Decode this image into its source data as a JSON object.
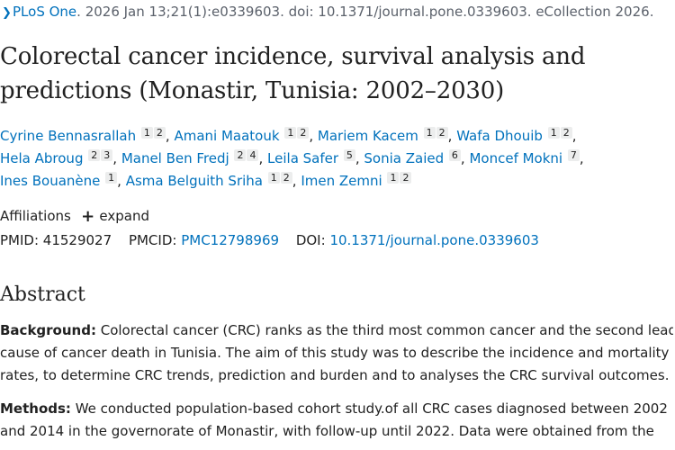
{
  "citation": {
    "journal": "PLoS One",
    "details": ". 2026 Jan 13;21(1):e0339603. doi: 10.1371/journal.pone.0339603. eCollection 2026."
  },
  "article": {
    "title_lines": [
      "Colorectal cancer incidence, survival analysis and",
      "predictions (Monastir, Tunisia: 2002–2030)"
    ]
  },
  "authors": [
    {
      "name": "Cyrine Bennasrallah",
      "affs": [
        "1",
        "2"
      ]
    },
    {
      "name": "Amani Maatouk",
      "affs": [
        "1",
        "2"
      ]
    },
    {
      "name": "Mariem Kacem",
      "affs": [
        "1",
        "2"
      ]
    },
    {
      "name": "Wafa Dhouib",
      "affs": [
        "1",
        "2"
      ]
    },
    {
      "name": "Hela Abroug",
      "affs": [
        "2",
        "3"
      ]
    },
    {
      "name": "Manel Ben Fredj",
      "affs": [
        "2",
        "4"
      ]
    },
    {
      "name": "Leila Safer",
      "affs": [
        "5"
      ]
    },
    {
      "name": "Sonia Zaied",
      "affs": [
        "6"
      ]
    },
    {
      "name": "Moncef Mokni",
      "affs": [
        "7"
      ]
    },
    {
      "name": "Ines Bouanène",
      "affs": [
        "1"
      ]
    },
    {
      "name": "Asma Belguith Sriha",
      "affs": [
        "1",
        "2"
      ]
    },
    {
      "name": "Imen Zemni",
      "affs": [
        "1",
        "2"
      ]
    }
  ],
  "affiliations": {
    "label": "Affiliations",
    "expand_label": "expand"
  },
  "identifiers": {
    "pmid_label": "PMID:",
    "pmid": "41529027",
    "pmcid_label": "PMCID:",
    "pmcid": "PMC12798969",
    "doi_label": "DOI:",
    "doi": "10.1371/journal.pone.0339603"
  },
  "abstract": {
    "heading": "Abstract",
    "background": {
      "label": "Background:",
      "lines": [
        " Colorectal cancer (CRC) ranks as the third most common cancer and the second leading",
        "cause of cancer death in Tunisia. The aim of this study was to describe the incidence and mortality",
        "rates, to determine CRC trends, prediction and burden and to analyses the CRC survival outcomes."
      ]
    },
    "methods": {
      "label": "Methods:",
      "lines": [
        " We conducted population-based cohort study.of all CRC cases diagnosed between 2002",
        "and 2014 in the governorate of Monastir, with follow-up until 2022. Data were obtained from the"
      ]
    }
  },
  "colors": {
    "link": "#0071bc",
    "text": "#212121",
    "badge_bg": "#eceded"
  }
}
